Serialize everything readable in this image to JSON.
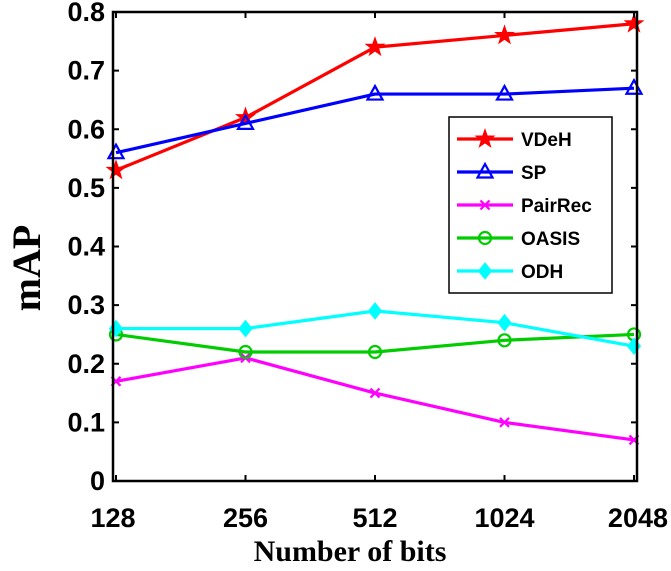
{
  "chart_data": {
    "type": "line",
    "xlabel": "Number of bits",
    "ylabel": "mAP",
    "categories": [
      "128",
      "256",
      "512",
      "1024",
      "2048"
    ],
    "ylim": [
      0,
      0.8
    ],
    "yticks": [
      0,
      0.1,
      0.2,
      0.3,
      0.4,
      0.5,
      0.6,
      0.7,
      0.8
    ],
    "ytick_labels": [
      "0",
      "0.1",
      "0.2",
      "0.3",
      "0.4",
      "0.5",
      "0.6",
      "0.7",
      "0.8"
    ],
    "grid": false,
    "legend_position": "right",
    "series": [
      {
        "name": "VDeH",
        "color": "#ff0000",
        "marker": "star",
        "values": [
          0.53,
          0.62,
          0.74,
          0.76,
          0.78
        ]
      },
      {
        "name": "SP",
        "color": "#0000ff",
        "marker": "triangle",
        "values": [
          0.56,
          0.61,
          0.66,
          0.66,
          0.67
        ]
      },
      {
        "name": "PairRec",
        "color": "#ff00ff",
        "marker": "x",
        "values": [
          0.17,
          0.21,
          0.15,
          0.1,
          0.07
        ]
      },
      {
        "name": "OASIS",
        "color": "#00cc00",
        "marker": "circle",
        "values": [
          0.25,
          0.22,
          0.22,
          0.24,
          0.25
        ]
      },
      {
        "name": "ODH",
        "color": "#00ffff",
        "marker": "diamond",
        "values": [
          0.26,
          0.26,
          0.29,
          0.27,
          0.23
        ]
      }
    ]
  }
}
